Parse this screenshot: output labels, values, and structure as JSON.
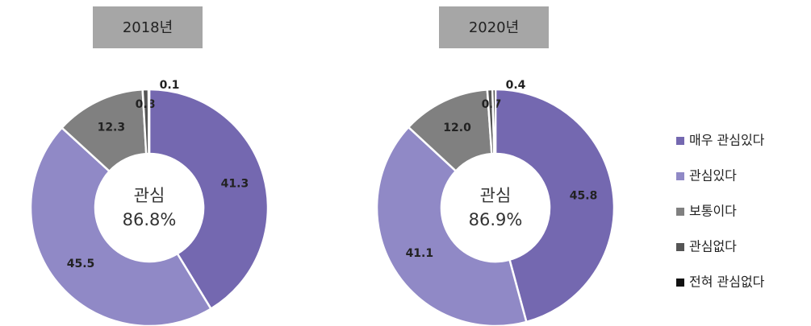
{
  "chart_data": [
    {
      "type": "donut",
      "title": "2018년",
      "categories": [
        "매우 관심있다",
        "관심있다",
        "보통이다",
        "관심없다",
        "전혀 관심없다"
      ],
      "colors": [
        "#7468b0",
        "#9089c6",
        "#808080",
        "#555555",
        "#111111"
      ],
      "values": [
        41.3,
        45.5,
        12.3,
        0.8,
        0.1
      ],
      "value_labels": [
        "41.3",
        "45.5",
        "12.3",
        "0.8",
        "0.1"
      ],
      "center_label": "관심",
      "center_value": "86.8%"
    },
    {
      "type": "donut",
      "title": "2020년",
      "values": [
        45.8,
        41.1,
        12.0,
        0.7,
        0.4
      ],
      "value_labels": [
        "45.8",
        "41.1",
        "12.0",
        "0.7",
        "0.4"
      ],
      "center_label": "관심",
      "center_value": "86.9%"
    }
  ]
}
